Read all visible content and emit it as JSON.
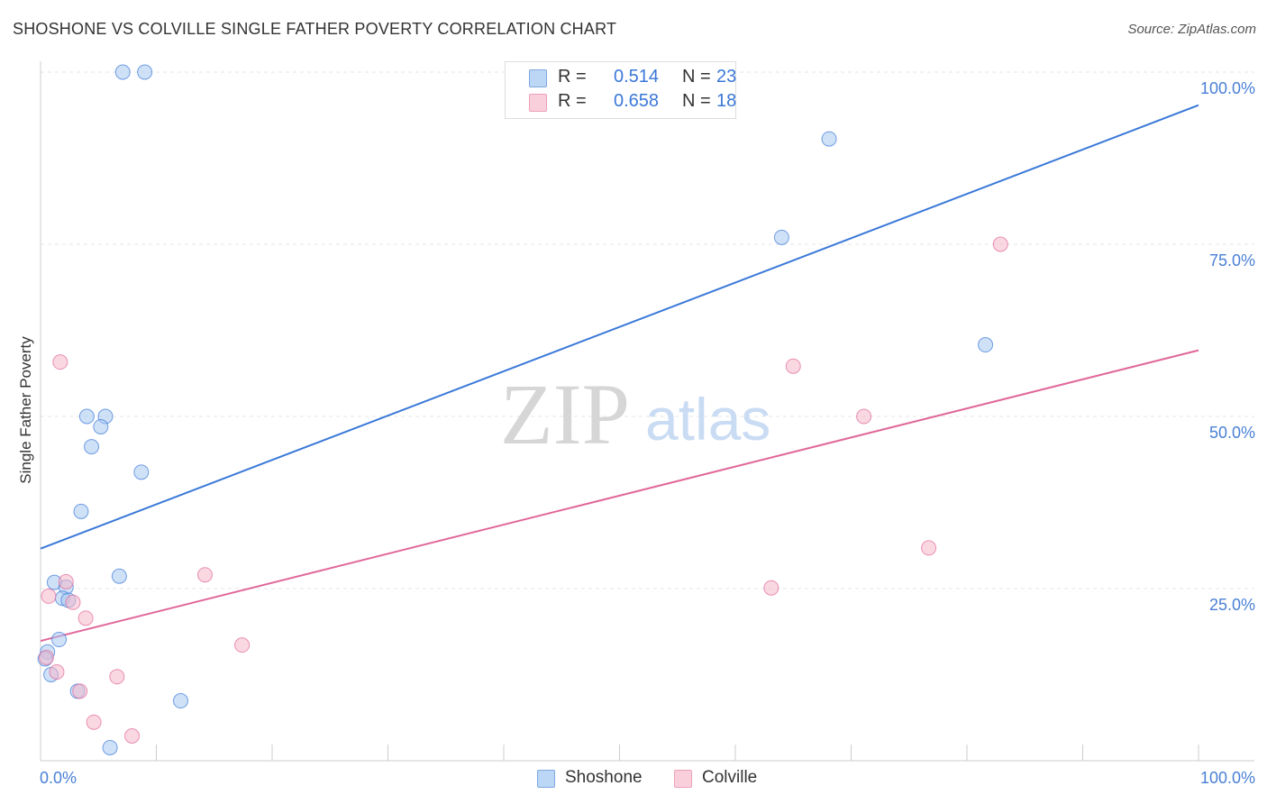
{
  "title": "SHOSHONE VS COLVILLE SINGLE FATHER POVERTY CORRELATION CHART",
  "source": "Source: ZipAtlas.com",
  "watermark": {
    "zip": "ZIP",
    "atlas": "atlas"
  },
  "legend_top": [
    {
      "r_label": "R =",
      "r_value": "0.514",
      "n_label": "N =",
      "n_value": "23",
      "color": "#a8c8f0"
    },
    {
      "r_label": "R =",
      "r_value": "0.658",
      "n_label": "N =",
      "n_value": "18",
      "color": "#f6b8cb"
    }
  ],
  "legend_bottom": [
    {
      "label": "Shoshone",
      "color": "#a8c8f0"
    },
    {
      "label": "Colville",
      "color": "#f6b8cb"
    }
  ],
  "chart_data": {
    "type": "scatter",
    "xlabel": "",
    "ylabel": "Single Father Poverty",
    "xlim": [
      0,
      100
    ],
    "ylim": [
      0,
      100
    ],
    "x_tick_labels": [
      "0.0%",
      "100.0%"
    ],
    "y_tick_labels": [
      "25.0%",
      "50.0%",
      "75.0%",
      "100.0%"
    ],
    "y_ticks": [
      25,
      50,
      75,
      100
    ],
    "grid": true,
    "series": [
      {
        "name": "Shoshone",
        "color": "#3a78d8",
        "fill": "#a8c8f0",
        "points": [
          [
            7.1,
            100
          ],
          [
            9.0,
            100
          ],
          [
            68.1,
            90.3
          ],
          [
            64.0,
            76.0
          ],
          [
            81.6,
            60.4
          ],
          [
            4.0,
            50.0
          ],
          [
            5.6,
            50.0
          ],
          [
            5.2,
            48.5
          ],
          [
            4.4,
            45.6
          ],
          [
            8.7,
            41.9
          ],
          [
            3.5,
            36.2
          ],
          [
            1.2,
            25.9
          ],
          [
            2.2,
            25.2
          ],
          [
            6.8,
            26.8
          ],
          [
            1.9,
            23.6
          ],
          [
            2.4,
            23.3
          ],
          [
            1.6,
            17.6
          ],
          [
            0.6,
            15.8
          ],
          [
            0.4,
            14.8
          ],
          [
            0.9,
            12.5
          ],
          [
            3.2,
            10.1
          ],
          [
            12.1,
            8.7
          ],
          [
            6.0,
            1.9
          ]
        ],
        "trend": {
          "x": [
            0,
            100
          ],
          "y": [
            30.8,
            95.2
          ]
        }
      },
      {
        "name": "Colville",
        "color": "#e0679a",
        "fill": "#f6b8cb",
        "points": [
          [
            82.9,
            75.0
          ],
          [
            1.7,
            57.9
          ],
          [
            65.0,
            57.3
          ],
          [
            71.1,
            50.0
          ],
          [
            76.7,
            30.9
          ],
          [
            14.2,
            27.0
          ],
          [
            63.1,
            25.1
          ],
          [
            2.2,
            26.0
          ],
          [
            0.7,
            23.9
          ],
          [
            2.8,
            23.0
          ],
          [
            3.9,
            20.7
          ],
          [
            17.4,
            16.8
          ],
          [
            1.4,
            12.9
          ],
          [
            6.6,
            12.2
          ],
          [
            3.4,
            10.1
          ],
          [
            0.5,
            15.0
          ],
          [
            4.6,
            5.6
          ],
          [
            7.9,
            3.6
          ]
        ],
        "trend": {
          "x": [
            0,
            100
          ],
          "y": [
            17.4,
            59.6
          ]
        }
      }
    ]
  }
}
